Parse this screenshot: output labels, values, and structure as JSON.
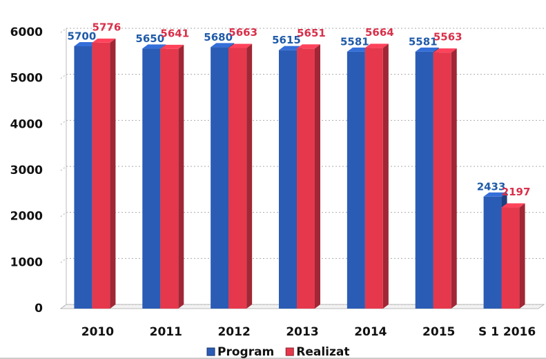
{
  "chart_data": {
    "type": "bar3d",
    "categories": [
      "2010",
      "2011",
      "2012",
      "2013",
      "2014",
      "2015",
      "S 1 2016"
    ],
    "series": [
      {
        "name": "Program",
        "color": "#2b5cb5",
        "values": [
          5700,
          5650,
          5680,
          5615,
          5581,
          5581,
          2433
        ]
      },
      {
        "name": "Realizat",
        "color": "#e5384c",
        "values": [
          5776,
          5641,
          5663,
          5651,
          5664,
          5563,
          2197
        ]
      }
    ],
    "ylim": [
      0,
      6000
    ],
    "yticks": [
      0,
      1000,
      2000,
      3000,
      4000,
      5000,
      6000
    ],
    "grid": true,
    "legend": "bottom"
  }
}
